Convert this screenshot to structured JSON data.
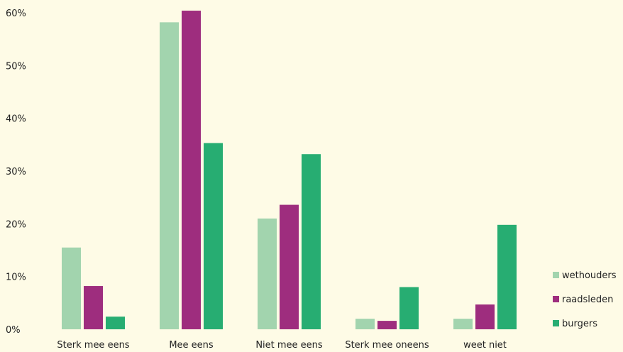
{
  "chart_data": {
    "type": "bar",
    "categories": [
      "Sterk mee eens",
      "Mee eens",
      "Niet mee eens",
      "Sterk mee oneens",
      "weet niet"
    ],
    "series": [
      {
        "name": "wethouders",
        "color": "#a2d4ae",
        "values": [
          15.5,
          58.2,
          21.0,
          2.0,
          2.0
        ]
      },
      {
        "name": "raadsleden",
        "color": "#9e2d7e",
        "values": [
          8.2,
          60.4,
          23.6,
          1.6,
          4.7
        ]
      },
      {
        "name": "burgers",
        "color": "#27ad72",
        "values": [
          2.4,
          35.3,
          33.2,
          8.0,
          19.8
        ]
      }
    ],
    "yticks": [
      "0%",
      "10%",
      "20%",
      "30%",
      "40%",
      "50%",
      "60%"
    ],
    "ylim": [
      0,
      60
    ],
    "title": "",
    "xlabel": "",
    "ylabel": "",
    "legend_position": "bottom-right"
  }
}
